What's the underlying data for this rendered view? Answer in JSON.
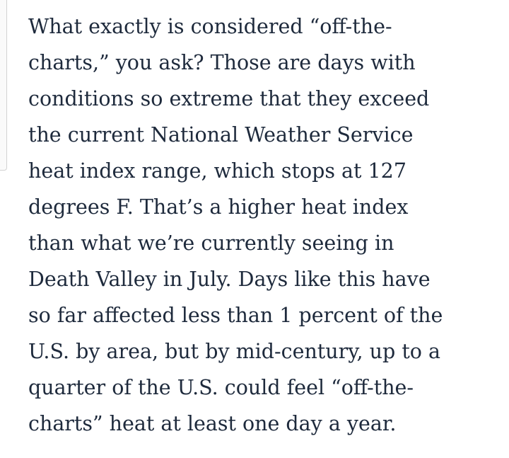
{
  "article": {
    "lines": [
      "What exactly is considered “off-the-",
      "charts,” you ask? Those are days with",
      "conditions so extreme that they exceed",
      "the current National Weather Service",
      "heat index range, which stops at 127",
      "degrees F. That’s a higher heat index",
      "than what we’re currently seeing in",
      "Death Valley in July. Days like this have",
      "so far affected less than 1 percent of the",
      "U.S. by area, but by mid-century, up to a",
      "quarter of the U.S. could feel “off-the-",
      "charts” heat at least one day a year."
    ]
  },
  "colors": {
    "text": "#1e2a3c",
    "background": "#ffffff"
  }
}
